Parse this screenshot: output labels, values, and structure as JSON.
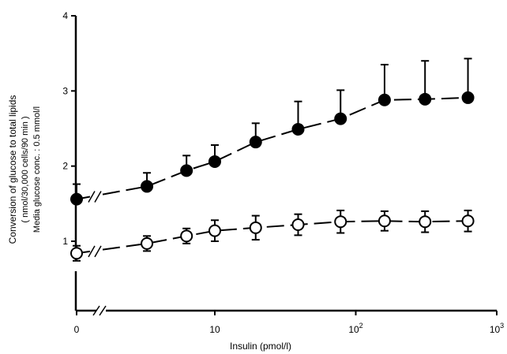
{
  "chart_data": {
    "type": "scatter",
    "xlabel": "Insulin (pmol/l)",
    "ylabel_lines": [
      "Conversion of glucose to total lipids",
      "( nmol/30,000 cells/90 min )",
      "Media glucose conc. : 0.5 mmol/l"
    ],
    "x_scale": "log",
    "x_ticks": [
      {
        "value": 0,
        "label": "0"
      },
      {
        "value": 10,
        "label": "10"
      },
      {
        "value": 100,
        "label": "10",
        "sup": "2"
      },
      {
        "value": 1000,
        "label": "10",
        "sup": "3"
      }
    ],
    "y_ticks": [
      {
        "value": 1,
        "label": "1"
      },
      {
        "value": 2,
        "label": "2"
      },
      {
        "value": 3,
        "label": "3"
      },
      {
        "value": 4,
        "label": "4"
      }
    ],
    "ylim": [
      0.25,
      4
    ],
    "series": [
      {
        "marker": "filled-circle",
        "points": [
          {
            "x": 0,
            "y": 1.56,
            "err": 0.2
          },
          {
            "x": 3.3,
            "y": 1.73,
            "err": 0.18
          },
          {
            "x": 6.3,
            "y": 1.94,
            "err": 0.2
          },
          {
            "x": 10,
            "y": 2.06,
            "err": 0.22
          },
          {
            "x": 19.5,
            "y": 2.32,
            "err": 0.25
          },
          {
            "x": 39,
            "y": 2.49,
            "err": 0.37
          },
          {
            "x": 78,
            "y": 2.63,
            "err": 0.38
          },
          {
            "x": 160,
            "y": 2.88,
            "err": 0.47
          },
          {
            "x": 310,
            "y": 2.89,
            "err": 0.51
          },
          {
            "x": 625,
            "y": 2.91,
            "err": 0.52
          }
        ]
      },
      {
        "marker": "open-circle",
        "points": [
          {
            "x": 0,
            "y": 0.84,
            "err": 0.1
          },
          {
            "x": 3.3,
            "y": 0.97,
            "err": 0.1
          },
          {
            "x": 6.3,
            "y": 1.07,
            "err": 0.1
          },
          {
            "x": 10,
            "y": 1.14,
            "err": 0.14
          },
          {
            "x": 19.5,
            "y": 1.18,
            "err": 0.16
          },
          {
            "x": 39,
            "y": 1.22,
            "err": 0.14
          },
          {
            "x": 78,
            "y": 1.26,
            "err": 0.15
          },
          {
            "x": 160,
            "y": 1.27,
            "err": 0.13
          },
          {
            "x": 310,
            "y": 1.26,
            "err": 0.14
          },
          {
            "x": 625,
            "y": 1.27,
            "err": 0.14
          }
        ]
      }
    ]
  }
}
